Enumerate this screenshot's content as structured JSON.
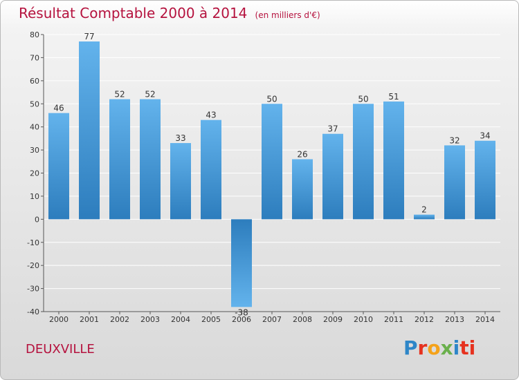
{
  "header": {
    "title": "Résultat Comptable 2000 à 2014",
    "subtitle": "(en milliers d'€)"
  },
  "commune": "DEUXVILLE",
  "logo": {
    "text": "Proxiti"
  },
  "colors": {
    "title": "#b5123e",
    "bar_light": "#63b3ec",
    "bar_dark": "#2d7dbd",
    "grid": "#ffffff"
  },
  "chart_data": {
    "type": "bar",
    "title": "Résultat Comptable 2000 à 2014",
    "subtitle": "(en milliers d'€)",
    "categories": [
      "2000",
      "2001",
      "2002",
      "2003",
      "2004",
      "2005",
      "2006",
      "2007",
      "2008",
      "2009",
      "2010",
      "2011",
      "2012",
      "2013",
      "2014"
    ],
    "values": [
      46,
      77,
      52,
      52,
      33,
      43,
      -38,
      50,
      26,
      37,
      50,
      51,
      2,
      32,
      34
    ],
    "data_labels": [
      "46",
      "77",
      "52",
      "52",
      "33",
      "43",
      "-38",
      "50",
      "26",
      "37",
      "50",
      "51",
      "2",
      "32",
      "34"
    ],
    "ylim": [
      -40,
      80
    ],
    "yticks": [
      -40,
      -30,
      -20,
      -10,
      0,
      10,
      20,
      30,
      40,
      50,
      60,
      70,
      80
    ],
    "grid": true,
    "legend": "none"
  }
}
